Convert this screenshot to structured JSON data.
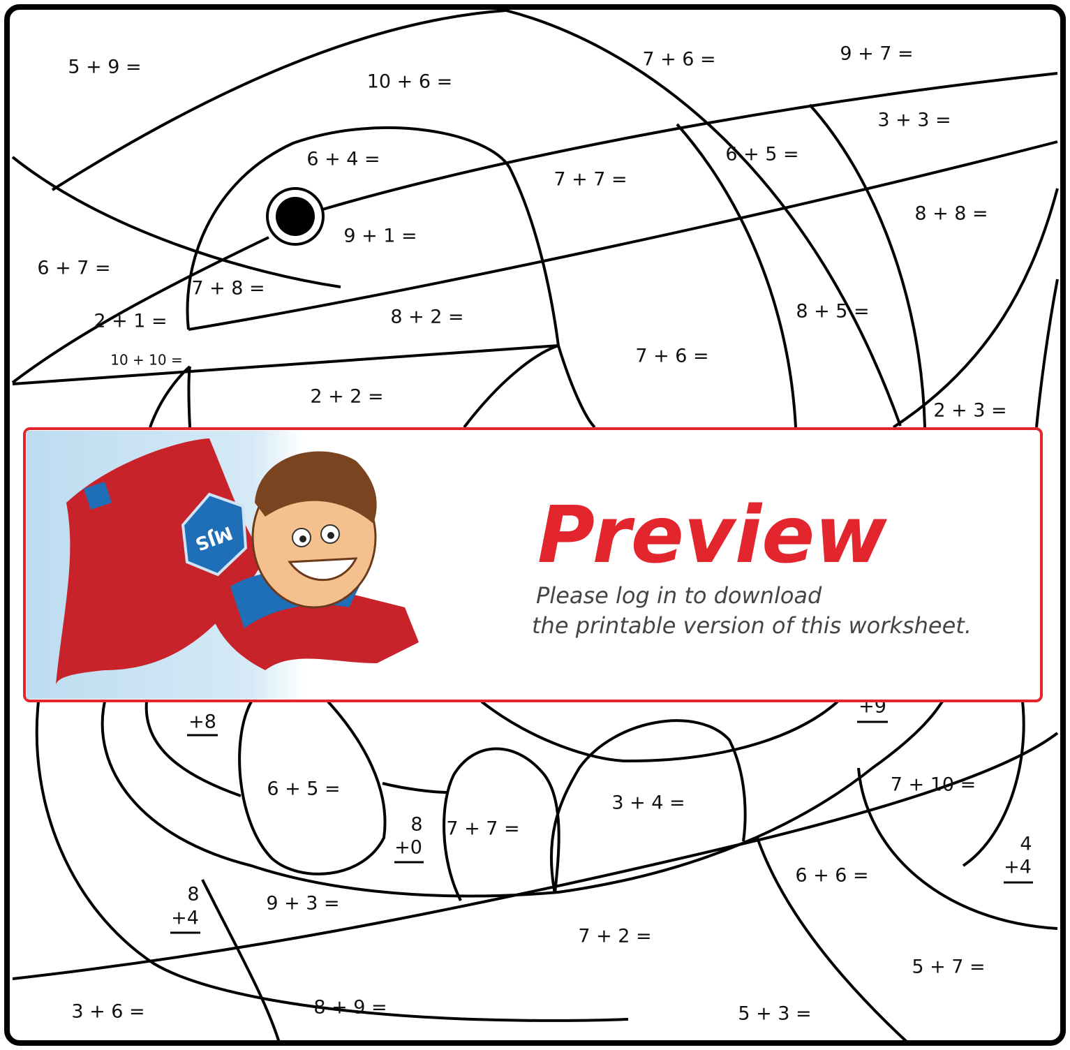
{
  "worksheet": {
    "problems": [
      "5 + 9 =",
      "10 + 6 =",
      "7 + 6 =",
      "9 + 7 =",
      "3 + 3 =",
      "6 + 4 =",
      "6 + 5 =",
      "7 + 7 =",
      "8 + 8 =",
      "9 + 1 =",
      "6 + 7 =",
      "7 + 8 =",
      "2 + 1 =",
      "8 + 2 =",
      "8 + 5 =",
      "7 + 6 =",
      "10 + 10 =",
      "2 + 2 =",
      "2 + 3 =",
      "6 + 5 =",
      "7 + 7 =",
      "3 + 4 =",
      "7 + 10 =",
      "6 + 6 =",
      "9 + 3 =",
      "7 + 2 =",
      "5 + 7 =",
      "3 + 6 =",
      "8 + 9 =",
      "5 + 3 ="
    ],
    "vertical_problems": [
      {
        "bottom": "+8"
      },
      {
        "bottom": "+9"
      },
      {
        "top": "8",
        "bottom": "+0"
      },
      {
        "top": "4",
        "bottom": "+4"
      },
      {
        "top": "8",
        "bottom": "+4"
      }
    ]
  },
  "preview": {
    "badge": "MJS",
    "title": "Preview",
    "message_line_1": "Please log in to download",
    "message_line_2": "the printable version of this worksheet."
  }
}
